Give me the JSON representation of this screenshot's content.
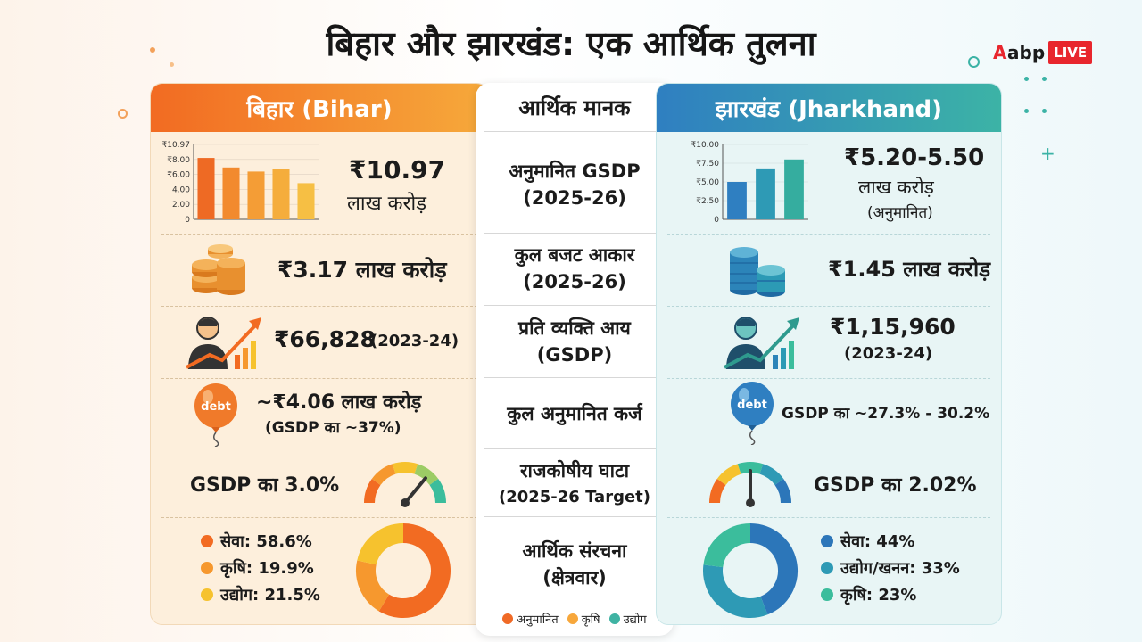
{
  "title": "बिहार और झारखंड: एक आर्थिक तुलना",
  "logo": {
    "a": "A",
    "abp": "abp",
    "live": "LIVE"
  },
  "center": {
    "header": "आर्थिक मानक",
    "rows": [
      {
        "line1": "अनुमानित GSDP",
        "line2": "(2025-26)"
      },
      {
        "line1": "कुल बजट आकार",
        "line2": "(2025-26)"
      },
      {
        "line1": "प्रति व्यक्ति आय",
        "line2": "(GSDP)"
      },
      {
        "line1": "कुल अनुमानित कर्ज",
        "line2": ""
      },
      {
        "line1": "राजकोषीय घाटा",
        "line2": "(2025-26 Target)"
      },
      {
        "line1": "आर्थिक संरचना",
        "line2": "(क्षेत्रवार)"
      }
    ],
    "legend": [
      {
        "label": "अनुमानित",
        "color": "#f06a26"
      },
      {
        "label": "कृषि",
        "color": "#f7a73b"
      },
      {
        "label": "उद्योग",
        "color": "#3fb3a3"
      }
    ]
  },
  "bihar": {
    "header": "बिहार (Bihar)",
    "gsdp": {
      "value": "₹10.97",
      "unit": "लाख करोड़"
    },
    "gsdp_chart": {
      "type": "bar",
      "ticks": [
        "₹10.97",
        "₹8.00",
        "₹6.00",
        "4.00",
        "2.00",
        "0"
      ],
      "values": [
        9.0,
        7.6,
        7.0,
        7.4,
        5.3
      ],
      "ylim": [
        0,
        10.97
      ]
    },
    "budget": "₹3.17 लाख करोड़",
    "per_capita": {
      "value": "₹66,828",
      "year": "(2023-24)"
    },
    "debt": {
      "value": "~₹4.06 लाख करोड़",
      "sub": "(GSDP का ~37%)",
      "balloon_label": "debt"
    },
    "deficit": {
      "prefix": "GSDP का ",
      "value": "3.0%"
    },
    "gauge_level": 0.72,
    "structure": [
      {
        "label": "सेवा: 58.6%",
        "value": 58.6,
        "color": "#f26b22"
      },
      {
        "label": "कृषि: 19.9%",
        "value": 19.9,
        "color": "#f6982e"
      },
      {
        "label": "उद्योग: 21.5%",
        "value": 21.5,
        "color": "#f6c22e"
      }
    ]
  },
  "jharkhand": {
    "header": "झारखंड (Jharkhand)",
    "gsdp": {
      "value": "₹5.20-5.50",
      "unit": "लाख करोड़",
      "note": "(अनुमानित)"
    },
    "gsdp_chart": {
      "type": "bar",
      "ticks": [
        "₹10.00",
        "₹7.50",
        "₹5.00",
        "₹2.50",
        "0"
      ],
      "values": [
        5.0,
        6.8,
        8.0
      ],
      "ylim": [
        0,
        10
      ]
    },
    "budget": "₹1.45 लाख करोड़",
    "per_capita": {
      "value": "₹1,15,960",
      "year": "(2023-24)"
    },
    "debt": {
      "value": "GSDP का ~27.3% - 30.2%",
      "balloon_label": "debt"
    },
    "deficit": {
      "prefix": "GSDP का ",
      "value": "2.02%"
    },
    "gauge_level": 0.5,
    "structure": [
      {
        "label": "सेवा: 44%",
        "value": 44,
        "color": "#2c76b9"
      },
      {
        "label": "उद्योग/खनन: 33%",
        "value": 33,
        "color": "#2e9ab5"
      },
      {
        "label": "कृषि: 23%",
        "value": 23,
        "color": "#3bbd9c"
      }
    ]
  }
}
